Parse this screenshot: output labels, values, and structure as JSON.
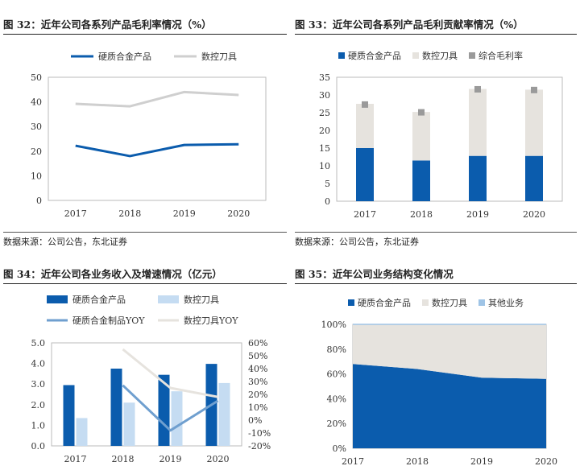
{
  "sources": {
    "left": "数据来源：公司公告，东北证券",
    "right": "数据来源：公司公告，东北证券"
  },
  "colors": {
    "blue": "#0b5cad",
    "gray": "#cfcfcf",
    "light_gray": "#e6e3de",
    "marker_gray": "#9a9a9a",
    "light_blue": "#c5dcf2",
    "yoy_blue": "#6f9fcf",
    "other_blue": "#9fc4e6"
  },
  "chart_data": [
    {
      "id": "fig32",
      "type": "line",
      "title": "图 32：近年公司各系列产品毛利率情况（%）",
      "categories": [
        "2017",
        "2018",
        "2019",
        "2020"
      ],
      "series": [
        {
          "name": "硬质合金产品",
          "values": [
            22.2,
            18.0,
            22.5,
            22.8
          ],
          "color": "#0b5cad"
        },
        {
          "name": "数控刀具",
          "values": [
            39.2,
            38.2,
            44.0,
            42.8
          ],
          "color": "#cfcfcf"
        }
      ],
      "ylim": [
        0,
        50
      ],
      "yticks": [
        0,
        10,
        20,
        30,
        40,
        50
      ],
      "legend": "top-center"
    },
    {
      "id": "fig33",
      "type": "bar",
      "title": "图 33：近年公司各系列产品毛利贡献率情况（%）",
      "categories": [
        "2017",
        "2018",
        "2019",
        "2020"
      ],
      "series": [
        {
          "name": "硬质合金产品",
          "values": [
            15.0,
            11.5,
            12.8,
            12.8
          ],
          "color": "#0b5cad"
        },
        {
          "name": "数控刀具",
          "values": [
            12.5,
            13.7,
            18.9,
            18.7
          ],
          "color": "#e6e3de"
        },
        {
          "name": "综合毛利率",
          "values": [
            27.3,
            25.1,
            31.6,
            31.4
          ],
          "color": "#9a9a9a"
        }
      ],
      "ylim": [
        0,
        35
      ],
      "yticks": [
        0,
        5,
        10,
        15,
        20,
        25,
        30,
        35
      ],
      "legend": "top-center"
    },
    {
      "id": "fig34",
      "type": "bar",
      "title": "图 34：近年公司各业务收入及增速情况（亿元）",
      "categories": [
        "2017",
        "2018",
        "2019",
        "2020"
      ],
      "series": [
        {
          "name": "硬质合金产品",
          "values": [
            2.95,
            3.75,
            3.45,
            3.98
          ],
          "color": "#0b5cad",
          "axis": "left"
        },
        {
          "name": "数控刀具",
          "values": [
            1.35,
            2.1,
            2.65,
            3.05
          ],
          "color": "#c5dcf2",
          "axis": "left"
        },
        {
          "name": "硬质合金制品YOY",
          "values": [
            null,
            27.0,
            -8.0,
            15.0
          ],
          "color": "#6f9fcf",
          "axis": "right"
        },
        {
          "name": "数控刀具YOY",
          "values": [
            null,
            55.0,
            25.0,
            18.0
          ],
          "color": "#e6e3de",
          "axis": "right"
        }
      ],
      "ylim": [
        0,
        5
      ],
      "yticks": [
        "0.0",
        "1.0",
        "2.0",
        "3.0",
        "4.0",
        "5.0"
      ],
      "y2lim": [
        -20,
        60
      ],
      "y2ticks": [
        "-20%",
        "-10%",
        "0%",
        "10%",
        "20%",
        "30%",
        "40%",
        "50%",
        "60%"
      ],
      "legend": "top"
    },
    {
      "id": "fig35",
      "type": "area",
      "title": "图 35：近年公司业务结构变化情况",
      "categories": [
        "2017",
        "2018",
        "2019",
        "2020"
      ],
      "series": [
        {
          "name": "硬质合金产品",
          "values": [
            68,
            64,
            57,
            56
          ],
          "color": "#0b5cad"
        },
        {
          "name": "数控刀具",
          "values": [
            32,
            36,
            43,
            44
          ],
          "color": "#e6e3de"
        },
        {
          "name": "其他业务",
          "values": [
            0.3,
            0.3,
            0.3,
            0.3
          ],
          "color": "#9fc4e6"
        }
      ],
      "ylim": [
        0,
        100
      ],
      "yticks": [
        "0%",
        "20%",
        "40%",
        "60%",
        "80%",
        "100%"
      ],
      "legend": "top-left"
    }
  ]
}
